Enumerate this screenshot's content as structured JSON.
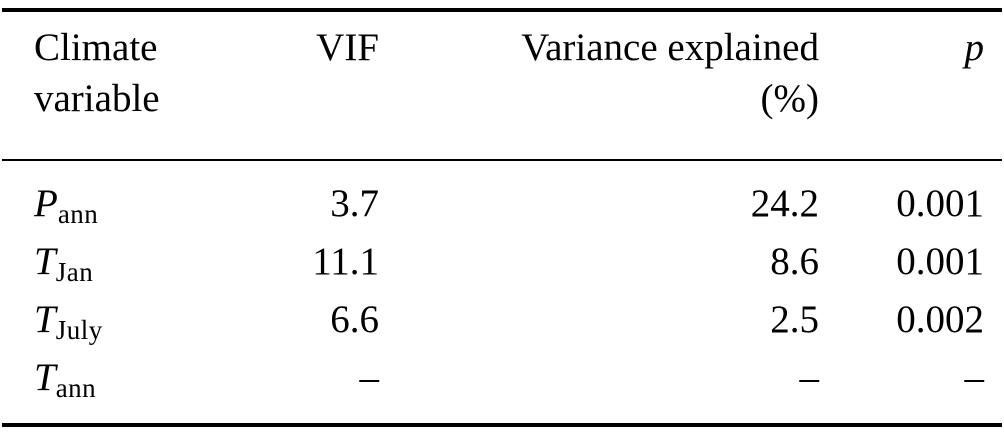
{
  "table": {
    "headers": {
      "climate_variable": "Climate variable",
      "vif": "VIF",
      "variance_explained": "Variance explained",
      "variance_unit": "(%)",
      "p": "p"
    },
    "rows": [
      {
        "variable_base": "P",
        "variable_sub": "ann",
        "vif": "3.7",
        "variance": "24.2",
        "p": "0.001"
      },
      {
        "variable_base": "T",
        "variable_sub": "Jan",
        "vif": "11.1",
        "variance": "8.6",
        "p": "0.001"
      },
      {
        "variable_base": "T",
        "variable_sub": "July",
        "vif": "6.6",
        "variance": "2.5",
        "p": "0.002"
      },
      {
        "variable_base": "T",
        "variable_sub": "ann",
        "vif": "–",
        "variance": "–",
        "p": "–"
      }
    ]
  },
  "chart_data": {
    "type": "table",
    "title": "",
    "columns": [
      "Climate variable",
      "VIF",
      "Variance explained (%)",
      "p"
    ],
    "rows": [
      [
        "P_ann",
        "3.7",
        "24.2",
        "0.001"
      ],
      [
        "T_Jan",
        "11.1",
        "8.6",
        "0.001"
      ],
      [
        "T_July",
        "6.6",
        "2.5",
        "0.002"
      ],
      [
        "T_ann",
        "–",
        "–",
        "–"
      ]
    ]
  }
}
